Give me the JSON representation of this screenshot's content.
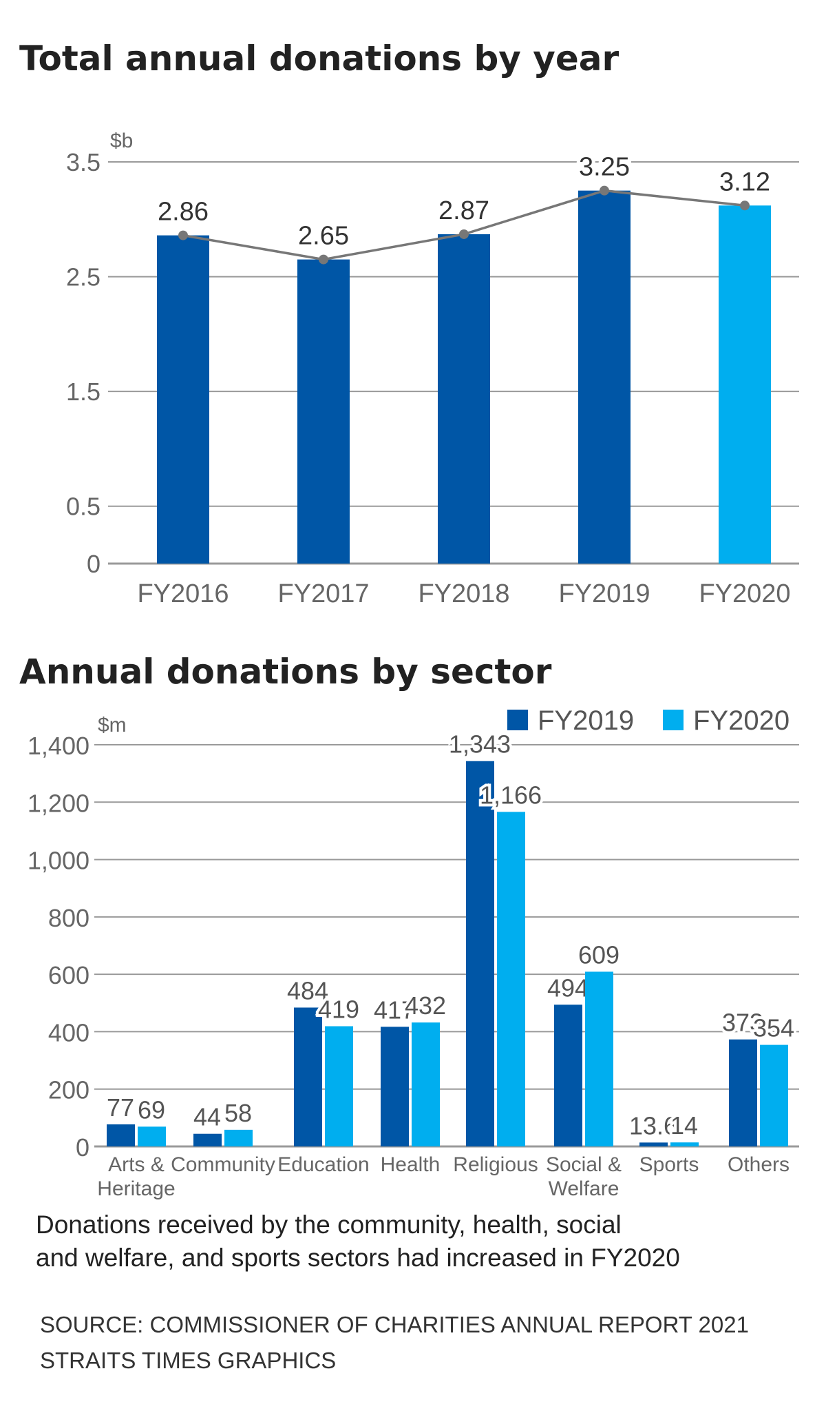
{
  "colors": {
    "fy2019_dark": "#0056a6",
    "fy2020_light": "#00aeef",
    "line": "#777777",
    "grid": "#9a9a9a"
  },
  "chart_data": [
    {
      "type": "bar",
      "title": "Total annual donations by year",
      "ylabel": "$b",
      "categories": [
        "FY2016",
        "FY2017",
        "FY2018",
        "FY2019",
        "FY2020"
      ],
      "values": [
        2.86,
        2.65,
        2.87,
        3.25,
        3.12
      ],
      "data_labels": [
        "2.86",
        "2.65",
        "2.87",
        "3.25",
        "3.12"
      ],
      "overlay_line": true,
      "yticks": [
        "0",
        "0.5",
        "1.5",
        "2.5",
        "3.5"
      ],
      "ytick_values": [
        0,
        0.5,
        1.5,
        2.5,
        3.5
      ],
      "ylim": [
        0,
        3.5
      ],
      "grid": true
    },
    {
      "type": "bar",
      "title": "Annual donations by sector",
      "ylabel": "$m",
      "categories": [
        [
          "Arts &",
          "Heritage"
        ],
        [
          "Community"
        ],
        [
          "Education"
        ],
        [
          "Health"
        ],
        [
          "Religious"
        ],
        [
          "Social &",
          "Welfare"
        ],
        [
          "Sports"
        ],
        [
          "Others"
        ]
      ],
      "series": [
        {
          "name": "FY2019",
          "values": [
            77,
            44,
            484,
            417,
            1343,
            494,
            13.6,
            373
          ],
          "labels": [
            "77",
            "44",
            "484",
            "417",
            "1,343",
            "494",
            "13.6",
            "373"
          ]
        },
        {
          "name": "FY2020",
          "values": [
            69,
            58,
            419,
            432,
            1166,
            609,
            14,
            354
          ],
          "labels": [
            "69",
            "58",
            "419",
            "432",
            "1,166",
            "609",
            "14",
            "354"
          ]
        }
      ],
      "yticks": [
        "0",
        "200",
        "400",
        "600",
        "800",
        "1,000",
        "1,200",
        "1,400"
      ],
      "ytick_values": [
        0,
        200,
        400,
        600,
        800,
        1000,
        1200,
        1400
      ],
      "ylim": [
        0,
        1400
      ],
      "grid": true,
      "legend": "top-right"
    }
  ],
  "note": [
    "Donations received by the community, health, social",
    "and welfare, and sports sectors had increased in FY2020"
  ],
  "source": [
    "SOURCE: COMMISSIONER OF CHARITIES ANNUAL REPORT 2021",
    "STRAITS TIMES GRAPHICS"
  ]
}
